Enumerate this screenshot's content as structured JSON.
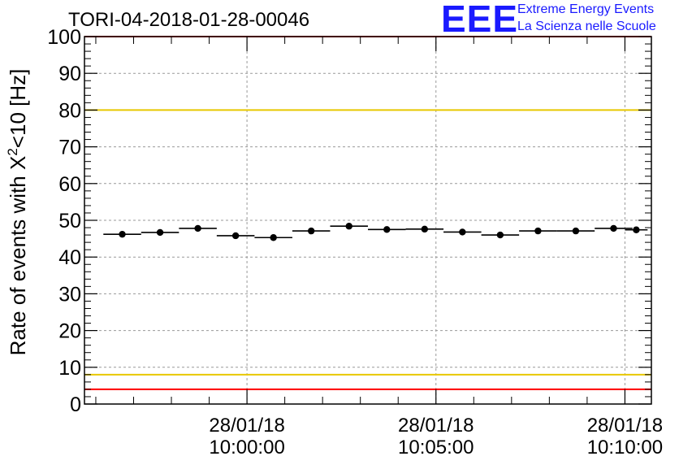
{
  "header": {
    "run_title": "TORI-04-2018-01-28-00046",
    "logo_text": "EEE",
    "logo_line1": "Extreme Energy Events",
    "logo_line2": "La Scienza nelle Scuole",
    "logo_color": "#1a1aff"
  },
  "chart_data": {
    "type": "scatter",
    "title": "TORI-04-2018-01-28-00046",
    "ylabel_prefix": "Rate of events with X",
    "ylabel_sup": "2",
    "ylabel_suffix": "<10 [Hz]",
    "ylim": [
      0,
      100
    ],
    "yticks": [
      0,
      10,
      20,
      30,
      40,
      50,
      60,
      70,
      80,
      90,
      100
    ],
    "xlim_minutes": [
      -4.3,
      10.7
    ],
    "xticks": [
      {
        "minute": 0,
        "date": "28/01/18",
        "time": "10:00:00"
      },
      {
        "minute": 5,
        "date": "28/01/18",
        "time": "10:05:00"
      },
      {
        "minute": 10,
        "date": "28/01/18",
        "time": "10:10:00"
      }
    ],
    "grid": true,
    "bin_width_minutes": 1,
    "points": [
      {
        "x": -3.3,
        "y": 46.2
      },
      {
        "x": -2.3,
        "y": 46.7
      },
      {
        "x": -1.3,
        "y": 47.8
      },
      {
        "x": -0.3,
        "y": 45.8
      },
      {
        "x": 0.7,
        "y": 45.3
      },
      {
        "x": 1.7,
        "y": 47.1
      },
      {
        "x": 2.7,
        "y": 48.4
      },
      {
        "x": 3.7,
        "y": 47.5
      },
      {
        "x": 4.7,
        "y": 47.6
      },
      {
        "x": 5.7,
        "y": 46.8
      },
      {
        "x": 6.7,
        "y": 46.0
      },
      {
        "x": 7.7,
        "y": 47.1
      },
      {
        "x": 8.7,
        "y": 47.1
      },
      {
        "x": 9.7,
        "y": 47.8
      },
      {
        "x": 10.3,
        "y": 47.4,
        "half_width": 0.3
      }
    ],
    "reference_lines": [
      {
        "name": "upper-red-limit",
        "y": 100,
        "color": "#ff0000"
      },
      {
        "name": "upper-yellow-limit",
        "y": 80,
        "color": "#e8c800"
      },
      {
        "name": "lower-yellow-limit",
        "y": 8,
        "color": "#e8c800"
      },
      {
        "name": "lower-red-limit",
        "y": 4,
        "color": "#ff0000"
      }
    ]
  }
}
